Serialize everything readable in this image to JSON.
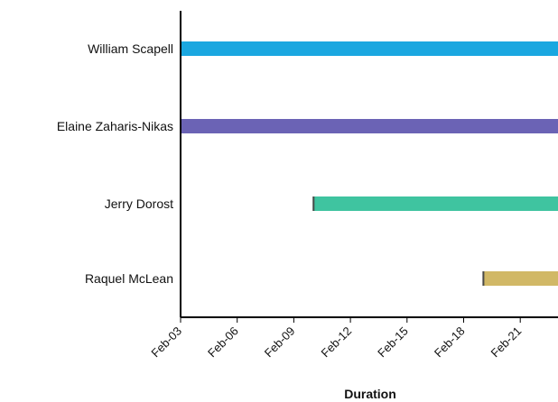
{
  "chart_data": {
    "type": "bar",
    "orientation": "horizontal",
    "xlabel": "Duration",
    "ylabel": "",
    "x_ticks": [
      "Feb-03",
      "Feb-06",
      "Feb-09",
      "Feb-12",
      "Feb-15",
      "Feb-18",
      "Feb-21"
    ],
    "x_range": [
      "2021-02-03",
      "2021-02-23"
    ],
    "items": [
      {
        "label": "William Scapell",
        "start": "2021-02-03",
        "end": "2021-02-23",
        "color": "#1aa7e0"
      },
      {
        "label": "Elaine Zaharis-Nikas",
        "start": "2021-02-03",
        "end": "2021-02-23",
        "color": "#6b63b5"
      },
      {
        "label": "Jerry Dorost",
        "start": "2021-02-10",
        "end": "2021-02-23",
        "color": "#3fc4a0"
      },
      {
        "label": "Raquel McLean",
        "start": "2021-02-19",
        "end": "2021-02-23",
        "color": "#d1b866"
      }
    ],
    "grid": false,
    "legend": "none"
  }
}
